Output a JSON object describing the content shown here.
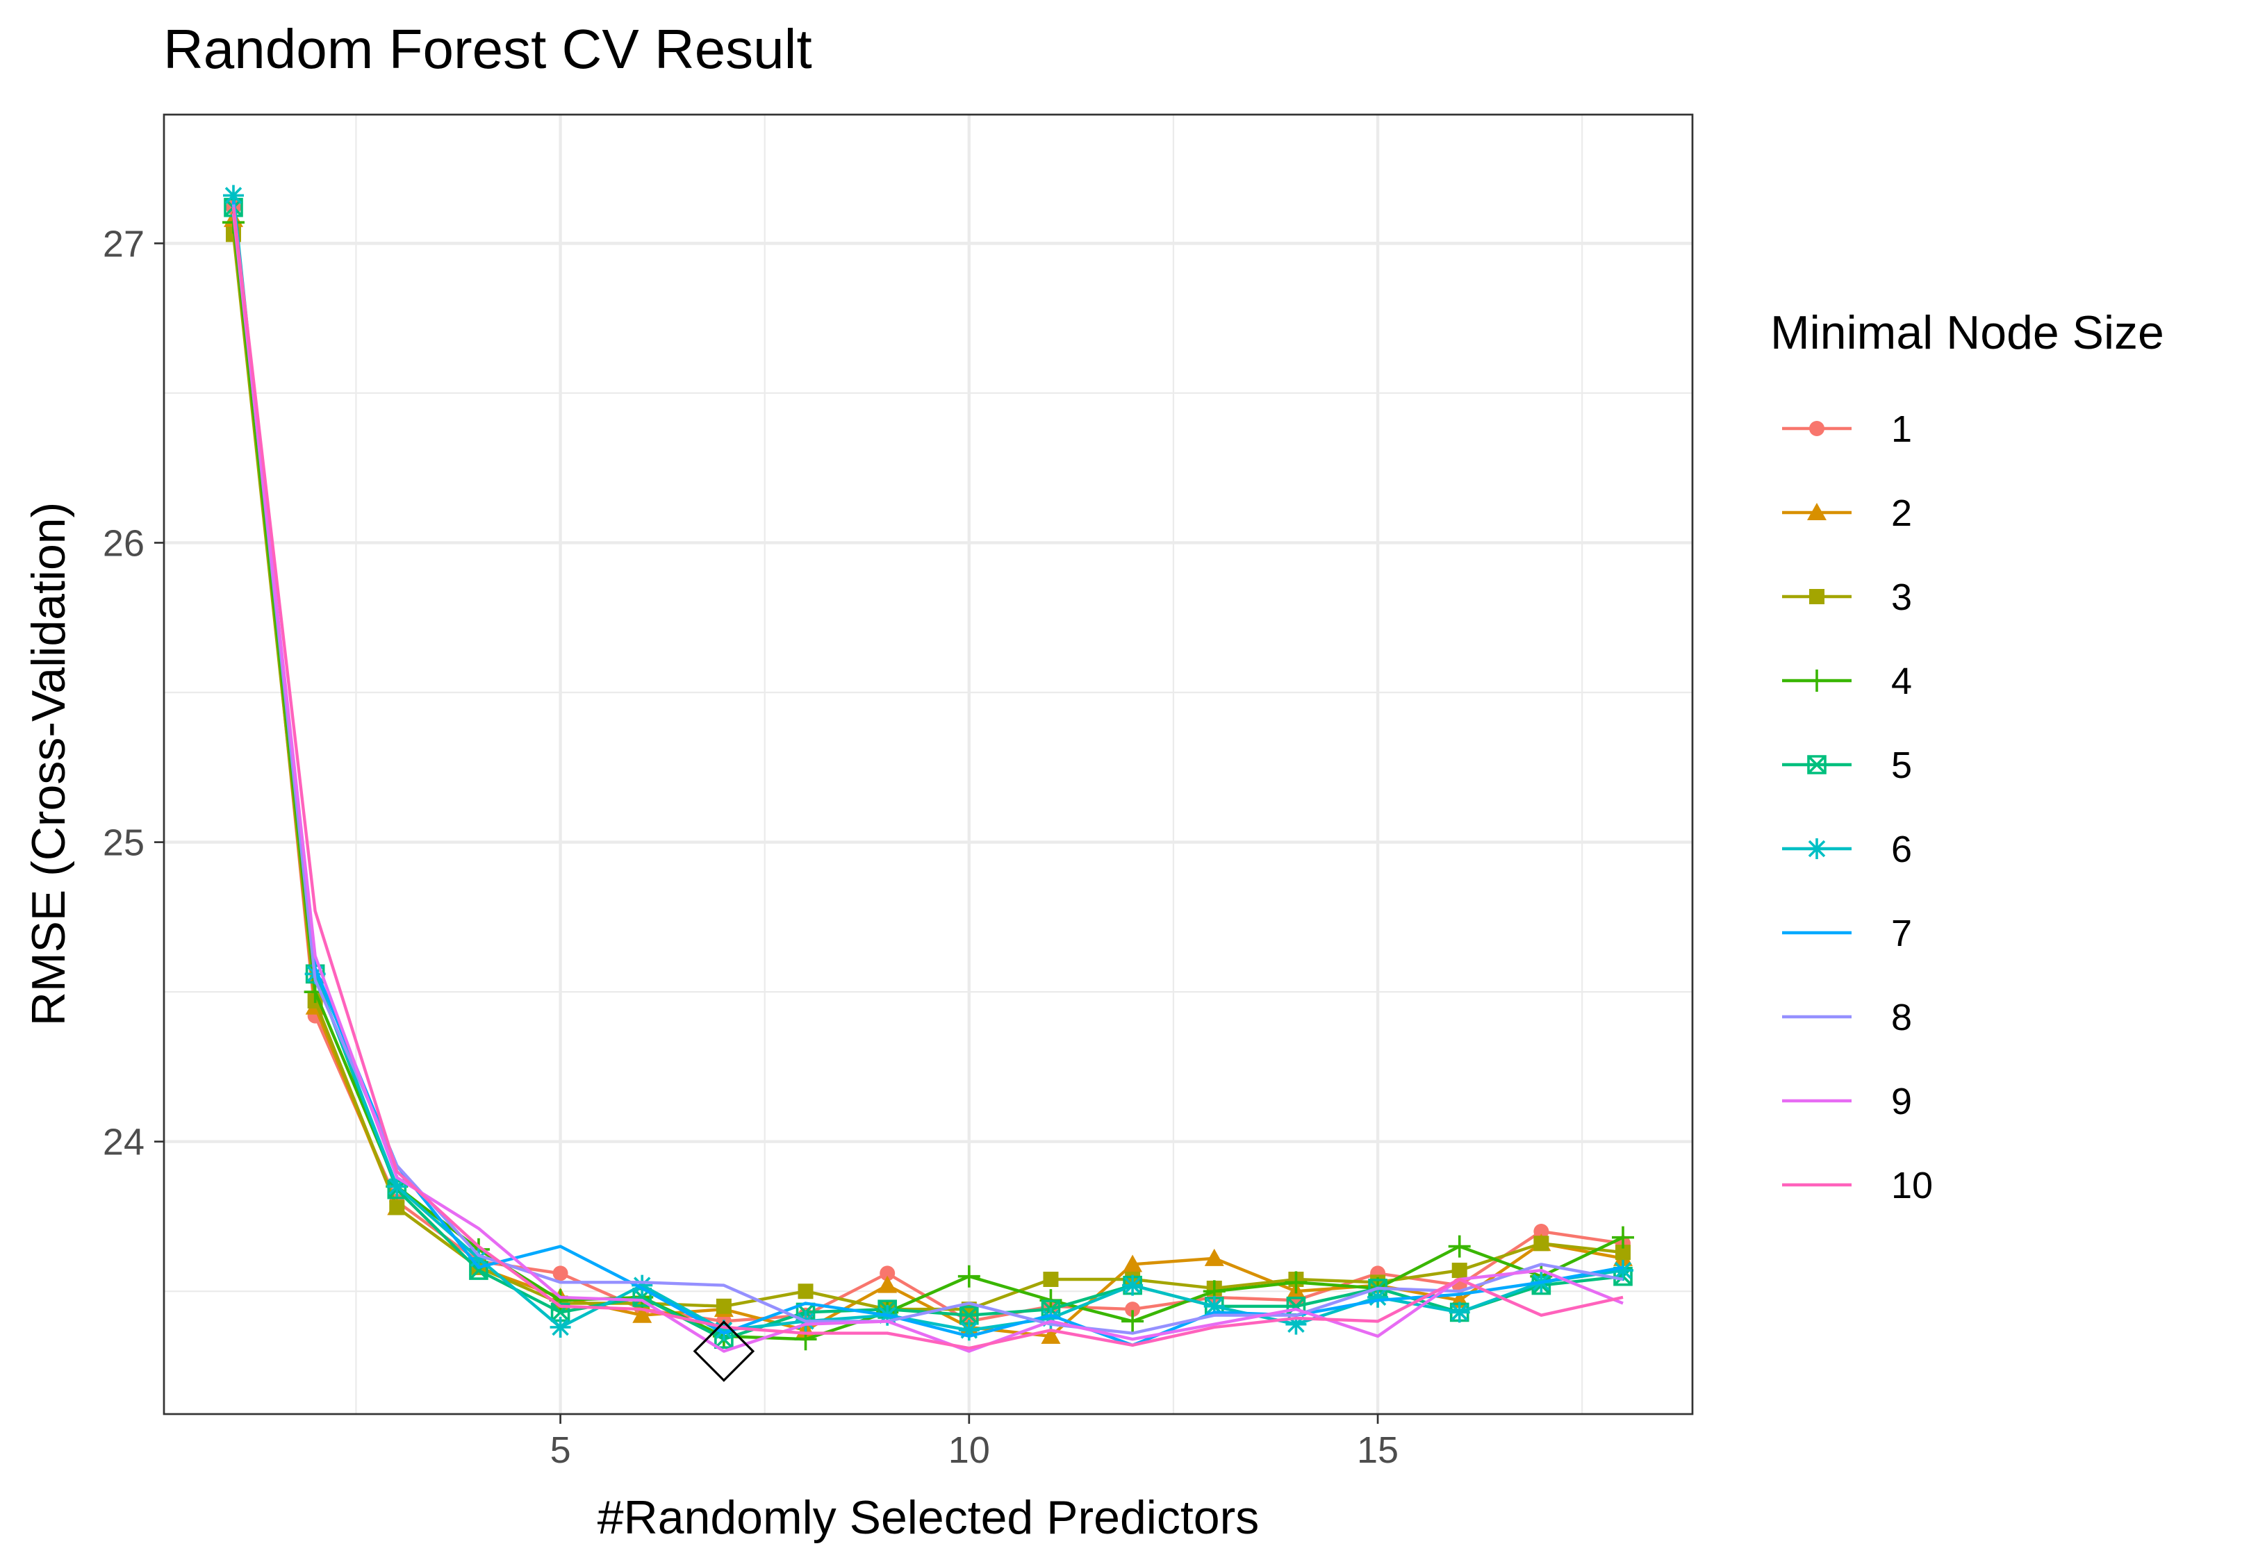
{
  "chart_data": {
    "type": "line",
    "title": "Random Forest CV Result",
    "xlabel": "#Randomly Selected Predictors",
    "ylabel": "RMSE (Cross-Validation)",
    "xlim": [
      0.15,
      18.85
    ],
    "ylim": [
      23.09,
      27.43
    ],
    "x_ticks": [
      5,
      10,
      15
    ],
    "x_tick_labels": [
      "5",
      "10",
      "15"
    ],
    "y_ticks": [
      24,
      25,
      26,
      27
    ],
    "y_tick_labels": [
      "24",
      "25",
      "26",
      "27"
    ],
    "grid": true,
    "legend": {
      "title": "Minimal Node Size",
      "placement": "right"
    },
    "x": [
      1,
      2,
      3,
      4,
      5,
      6,
      7,
      8,
      9,
      10,
      11,
      12,
      13,
      14,
      15,
      16,
      17,
      18
    ],
    "series": [
      {
        "name": "1",
        "color": "#F8766D",
        "marker": "circle",
        "values": [
          27.12,
          24.42,
          23.8,
          23.6,
          23.56,
          23.44,
          23.4,
          23.42,
          23.56,
          23.4,
          23.45,
          23.44,
          23.48,
          23.47,
          23.56,
          23.52,
          23.7,
          23.66
        ]
      },
      {
        "name": "2",
        "color": "#D89000",
        "marker": "triangle",
        "values": [
          27.08,
          24.45,
          23.78,
          23.58,
          23.48,
          23.42,
          23.44,
          23.37,
          23.52,
          23.38,
          23.35,
          23.59,
          23.61,
          23.5,
          23.52,
          23.47,
          23.66,
          23.61
        ]
      },
      {
        "name": "3",
        "color": "#A3A500",
        "marker": "square",
        "values": [
          27.03,
          24.47,
          23.78,
          23.58,
          23.46,
          23.46,
          23.45,
          23.5,
          23.44,
          23.44,
          23.54,
          23.54,
          23.51,
          23.54,
          23.53,
          23.57,
          23.66,
          23.63
        ]
      },
      {
        "name": "4",
        "color": "#39B600",
        "marker": "plus",
        "values": [
          27.07,
          24.5,
          23.85,
          23.64,
          23.47,
          23.48,
          23.35,
          23.34,
          23.43,
          23.55,
          23.47,
          23.4,
          23.5,
          23.53,
          23.51,
          23.65,
          23.55,
          23.68
        ]
      },
      {
        "name": "5",
        "color": "#00BF7D",
        "marker": "boxx",
        "values": [
          27.12,
          24.56,
          23.84,
          23.57,
          23.43,
          23.48,
          23.34,
          23.43,
          23.44,
          23.42,
          23.44,
          23.52,
          23.45,
          23.45,
          23.51,
          23.43,
          23.52,
          23.55
        ]
      },
      {
        "name": "6",
        "color": "#00BFC4",
        "marker": "asterisk",
        "values": [
          27.16,
          24.56,
          23.85,
          23.61,
          23.38,
          23.52,
          23.37,
          23.4,
          23.42,
          23.37,
          23.41,
          23.52,
          23.45,
          23.39,
          23.48,
          23.43,
          23.53,
          23.57
        ]
      },
      {
        "name": "7",
        "color": "#00A9FF",
        "marker": "none",
        "values": [
          27.14,
          24.58,
          23.92,
          23.58,
          23.65,
          23.51,
          23.36,
          23.46,
          23.42,
          23.35,
          23.42,
          23.32,
          23.43,
          23.42,
          23.47,
          23.49,
          23.53,
          23.58
        ]
      },
      {
        "name": "8",
        "color": "#9590FF",
        "marker": "none",
        "values": [
          27.13,
          24.54,
          23.92,
          23.62,
          23.53,
          23.53,
          23.52,
          23.4,
          23.4,
          23.46,
          23.39,
          23.36,
          23.42,
          23.42,
          23.51,
          23.5,
          23.59,
          23.54
        ]
      },
      {
        "name": "9",
        "color": "#E76BF3",
        "marker": "none",
        "values": [
          27.1,
          24.62,
          23.88,
          23.71,
          23.48,
          23.47,
          23.3,
          23.39,
          23.4,
          23.3,
          23.4,
          23.34,
          23.39,
          23.44,
          23.35,
          23.54,
          23.57,
          23.46
        ]
      },
      {
        "name": "10",
        "color": "#FF62BC",
        "marker": "none",
        "values": [
          27.12,
          24.77,
          23.9,
          23.65,
          23.45,
          23.44,
          23.38,
          23.36,
          23.36,
          23.31,
          23.37,
          23.32,
          23.38,
          23.41,
          23.4,
          23.54,
          23.42,
          23.48
        ]
      }
    ],
    "best_point": {
      "x": 7,
      "y": 23.3
    }
  }
}
